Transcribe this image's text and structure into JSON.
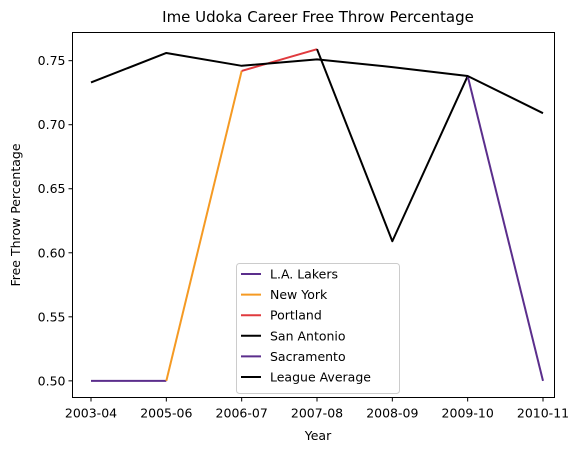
{
  "chart_data": {
    "type": "line",
    "title": "Ime Udoka Career Free Throw Percentage",
    "xlabel": "Year",
    "ylabel": "Free Throw Percentage",
    "categories": [
      "2003-04",
      "2005-06",
      "2006-07",
      "2007-08",
      "2008-09",
      "2009-10",
      "2010-11"
    ],
    "ylim": [
      0.487,
      0.772
    ],
    "yticks": [
      "0.50",
      "0.55",
      "0.60",
      "0.65",
      "0.70",
      "0.75"
    ],
    "ytick_values": [
      0.5,
      0.55,
      0.6,
      0.65,
      0.7,
      0.75
    ],
    "grid": false,
    "legend_position": "lower-center",
    "series": [
      {
        "name": "L.A. Lakers",
        "color": "#5b2e8c",
        "x": [
          "2003-04",
          "2005-06"
        ],
        "values": [
          0.5,
          0.5
        ]
      },
      {
        "name": "New York",
        "color": "#f59a23",
        "x": [
          "2005-06",
          "2006-07"
        ],
        "values": [
          0.5,
          0.742
        ]
      },
      {
        "name": "Portland",
        "color": "#e03a3e",
        "x": [
          "2006-07",
          "2007-08"
        ],
        "values": [
          0.742,
          0.759
        ]
      },
      {
        "name": "San Antonio",
        "color": "#000000",
        "x": [
          "2007-08",
          "2008-09",
          "2009-10"
        ],
        "values": [
          0.759,
          0.609,
          0.738
        ]
      },
      {
        "name": "Sacramento",
        "color": "#5b2e8c",
        "x": [
          "2009-10",
          "2010-11"
        ],
        "values": [
          0.738,
          0.5
        ]
      },
      {
        "name": "League Average",
        "color": "#000000",
        "x": [
          "2003-04",
          "2005-06",
          "2006-07",
          "2007-08",
          "2008-09",
          "2009-10",
          "2010-11"
        ],
        "values": [
          0.733,
          0.756,
          0.746,
          0.751,
          0.745,
          0.738,
          0.709
        ]
      }
    ]
  }
}
